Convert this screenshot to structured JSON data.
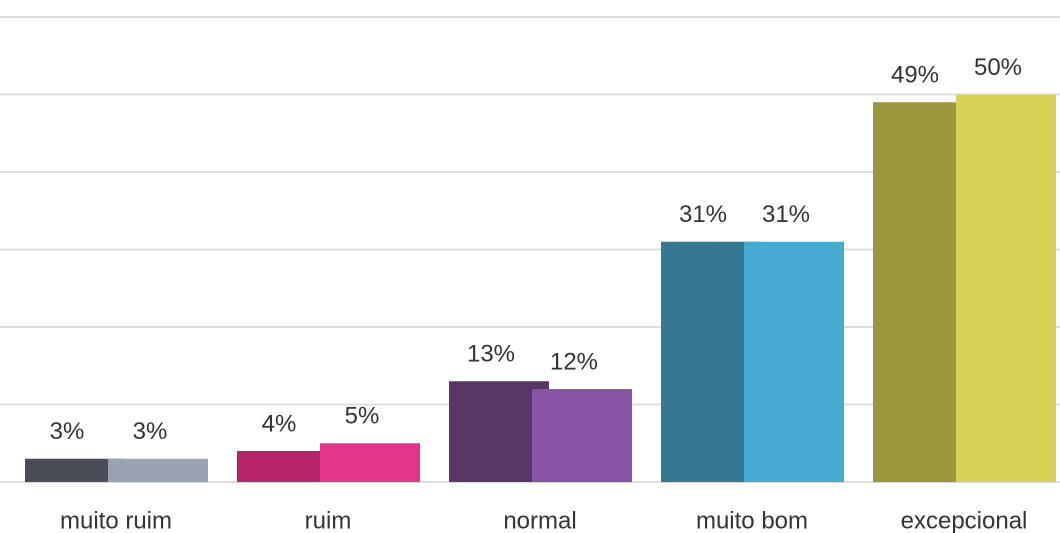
{
  "chart_data": {
    "type": "bar",
    "categories": [
      "muito ruim",
      "ruim",
      "normal",
      "muito bom",
      "excepcional"
    ],
    "series": [
      {
        "colors": [
          "#4a4d57",
          "#b5246a",
          "#5a3668",
          "#367891",
          "#9c963c"
        ],
        "values": [
          3,
          4,
          13,
          31,
          49
        ],
        "value_labels": [
          "3%",
          "4%",
          "13%",
          "31%",
          "49%"
        ]
      },
      {
        "colors": [
          "#9aa3b3",
          "#e4358a",
          "#8a52a3",
          "#47a9d0",
          "#d8d155"
        ],
        "values": [
          3,
          5,
          12,
          31,
          50
        ],
        "value_labels": [
          "3%",
          "5%",
          "12%",
          "31%",
          "50%"
        ]
      }
    ],
    "ylim": [
      0,
      60
    ],
    "yticks": [
      0,
      10,
      20,
      30,
      40,
      50,
      60
    ],
    "grid": true
  }
}
